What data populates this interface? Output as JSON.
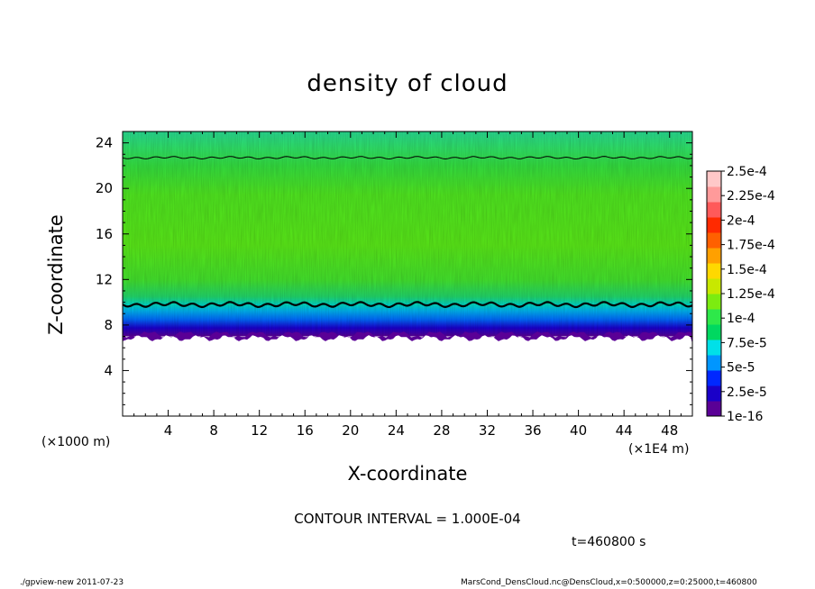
{
  "chart_data": {
    "type": "heatmap",
    "title": "density of cloud",
    "xlabel": "X-coordinate",
    "ylabel": "Z-coordinate",
    "x_unit_left": "(×1000 m)",
    "x_unit_right": "(×1E4 m)",
    "xlim": [
      0,
      50
    ],
    "ylim": [
      0,
      25
    ],
    "x_ticks": [
      4,
      8,
      12,
      16,
      20,
      24,
      28,
      32,
      36,
      40,
      44,
      48
    ],
    "y_ticks": [
      4,
      8,
      12,
      16,
      20,
      24
    ],
    "colorbar": {
      "labels": [
        "1e-16",
        "2.5e-5",
        "5e-5",
        "7.5e-5",
        "1e-4",
        "1.25e-4",
        "1.5e-4",
        "1.75e-4",
        "2e-4",
        "2.25e-4",
        "2.5e-4"
      ],
      "colors": [
        "#5a0096",
        "#1a00c8",
        "#0028ff",
        "#0096ff",
        "#00e0e8",
        "#00d860",
        "#2ee84a",
        "#7cec10",
        "#c8e800",
        "#ffd800",
        "#ffa000",
        "#ff6000",
        "#ff2a00",
        "#ff5a5a",
        "#ff9a9a",
        "#ffc8c8"
      ]
    },
    "profile": [
      {
        "z": 7.0,
        "value": 2e-06
      },
      {
        "z": 7.8,
        "value": 2.5e-05
      },
      {
        "z": 8.4,
        "value": 5e-05
      },
      {
        "z": 9.2,
        "value": 7.5e-05
      },
      {
        "z": 10.0,
        "value": 0.0001
      },
      {
        "z": 12.0,
        "value": 0.00013
      },
      {
        "z": 16.0,
        "value": 0.00015
      },
      {
        "z": 20.0,
        "value": 0.000145
      },
      {
        "z": 22.7,
        "value": 0.0001
      },
      {
        "z": 25.0,
        "value": 8e-05
      }
    ],
    "cloud_base_z": 7.0,
    "contour_levels_z": [
      9.8,
      22.7
    ],
    "contour_interval": "CONTOUR INTERVAL = 1.000E-04",
    "time_label": "t=460800 s"
  },
  "footer": {
    "left": "./gpview-new   2011-07-23",
    "right": "MarsCond_DensCloud.nc@DensCloud,x=0:500000,z=0:25000,t=460800"
  }
}
